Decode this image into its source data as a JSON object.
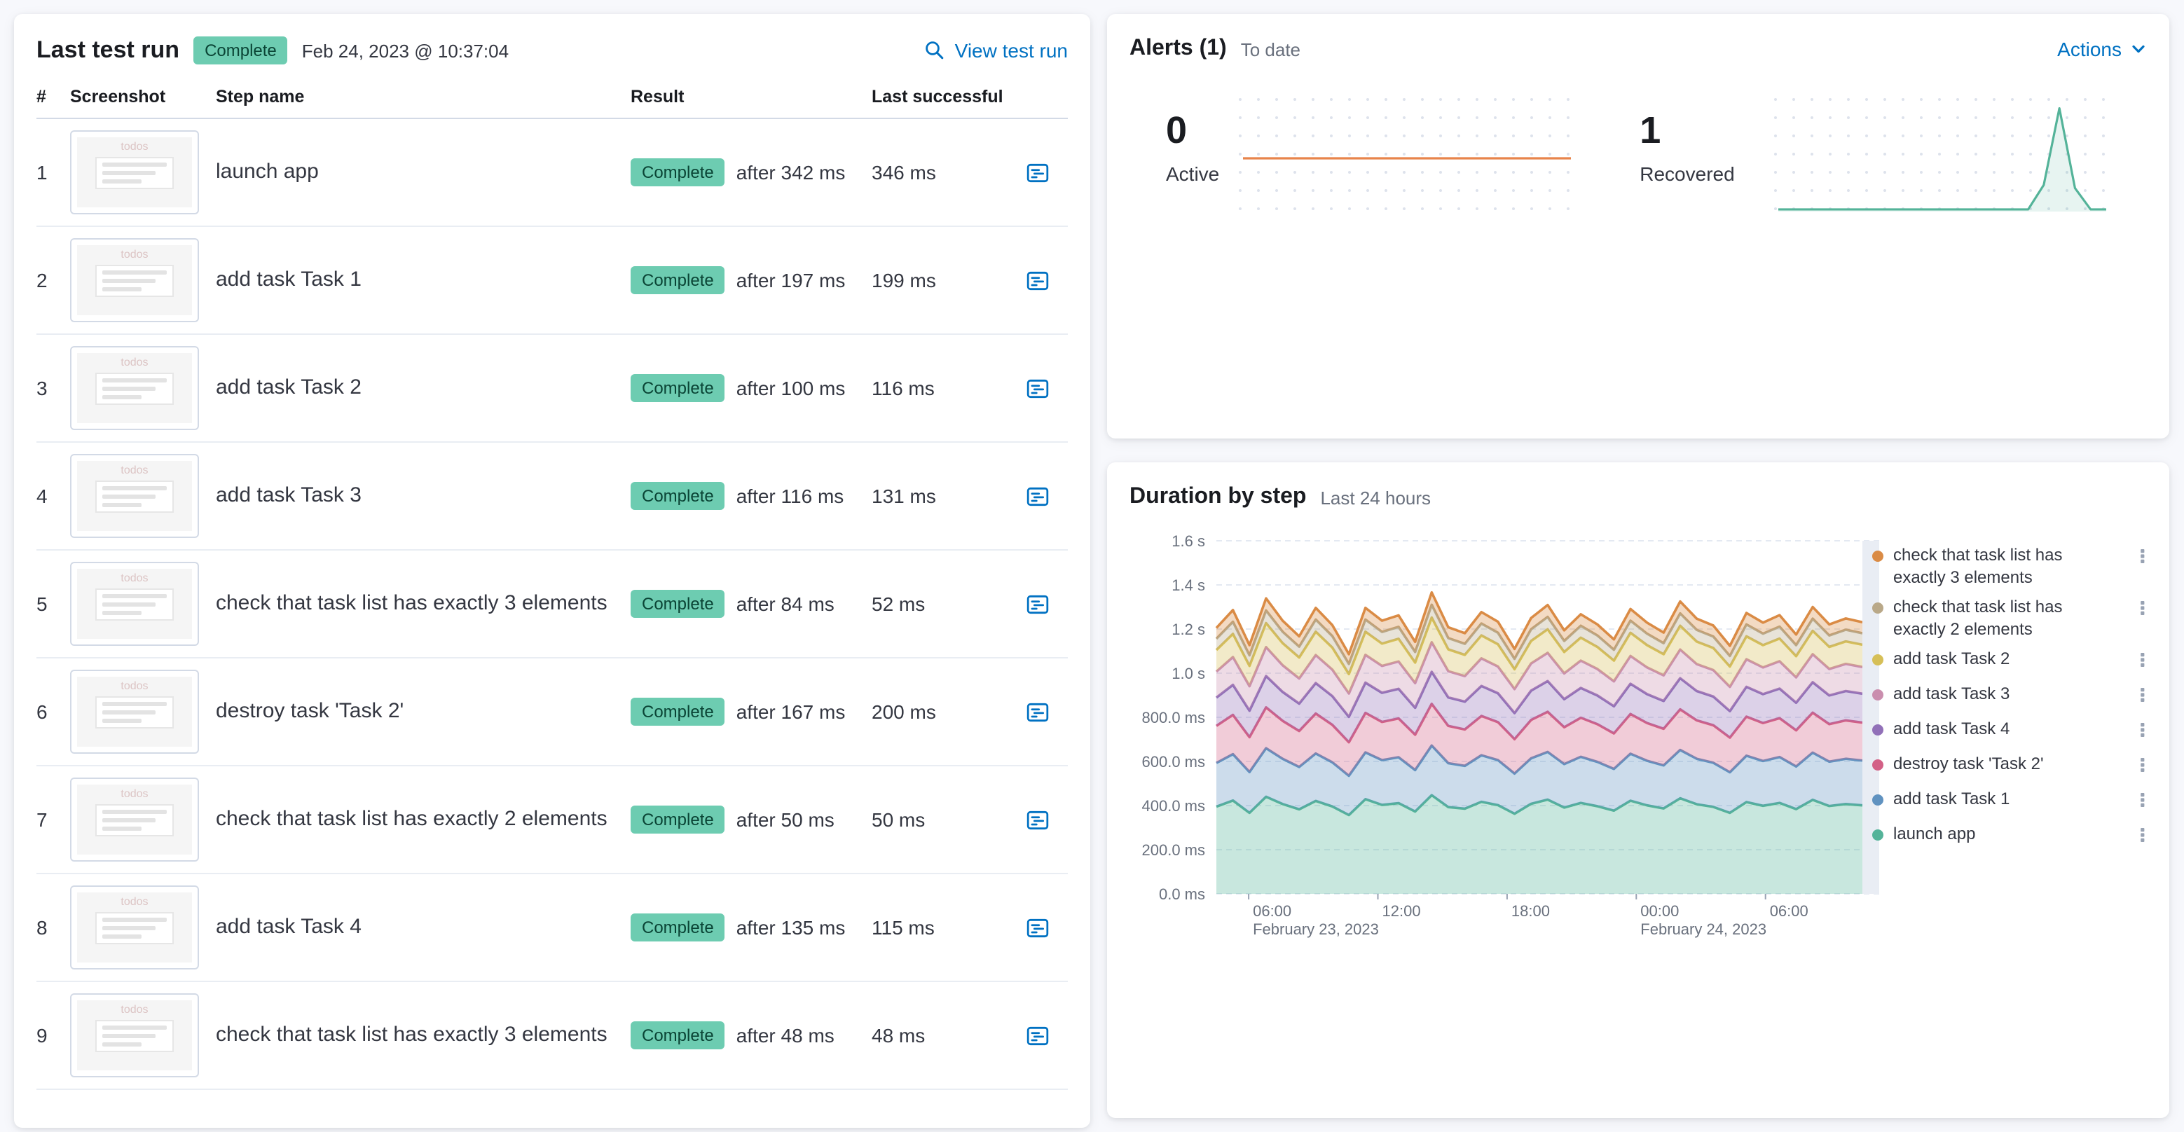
{
  "last_test_run": {
    "title": "Last test run",
    "status": "Complete",
    "timestamp": "Feb 24, 2023 @ 10:37:04",
    "view_test_run": "View test run",
    "columns": {
      "num": "#",
      "screenshot": "Screenshot",
      "step": "Step name",
      "result": "Result",
      "last_successful": "Last successful"
    },
    "thumb_text": "todos",
    "steps": [
      {
        "num": "1",
        "name": "launch app",
        "badge": "Complete",
        "after": "after 342 ms",
        "last": "346 ms"
      },
      {
        "num": "2",
        "name": "add task Task 1",
        "badge": "Complete",
        "after": "after 197 ms",
        "last": "199 ms"
      },
      {
        "num": "3",
        "name": "add task Task 2",
        "badge": "Complete",
        "after": "after 100 ms",
        "last": "116 ms"
      },
      {
        "num": "4",
        "name": "add task Task 3",
        "badge": "Complete",
        "after": "after 116 ms",
        "last": "131 ms"
      },
      {
        "num": "5",
        "name": "check that task list has exactly 3 elements",
        "badge": "Complete",
        "after": "after 84 ms",
        "last": "52 ms"
      },
      {
        "num": "6",
        "name": "destroy task 'Task 2'",
        "badge": "Complete",
        "after": "after 167 ms",
        "last": "200 ms"
      },
      {
        "num": "7",
        "name": "check that task list has exactly 2 elements",
        "badge": "Complete",
        "after": "after 50 ms",
        "last": "50 ms"
      },
      {
        "num": "8",
        "name": "add task Task 4",
        "badge": "Complete",
        "after": "after 135 ms",
        "last": "115 ms"
      },
      {
        "num": "9",
        "name": "check that task list has exactly 3 elements",
        "badge": "Complete",
        "after": "after 48 ms",
        "last": "48 ms"
      }
    ]
  },
  "alerts": {
    "title": "Alerts (1)",
    "subtitle": "To date",
    "actions": "Actions",
    "active": {
      "value": "0",
      "label": "Active",
      "color": "#E8844B",
      "spark": [
        0.5,
        0.5
      ]
    },
    "recovered": {
      "value": "1",
      "label": "Recovered",
      "color": "#54B399",
      "spark": [
        0.02,
        0.02,
        0.02,
        0.02,
        0.02,
        0.02,
        0.02,
        0.02,
        0.02,
        0.02,
        0.02,
        0.02,
        0.02,
        0.02,
        0.02,
        0.02,
        0.02,
        0.25,
        0.97,
        0.22,
        0.02,
        0.02
      ]
    }
  },
  "duration": {
    "title": "Duration by step",
    "subtitle": "Last 24 hours"
  },
  "chart_data": {
    "type": "area",
    "stacked": true,
    "title": "Duration by step",
    "subtitle": "Last 24 hours",
    "ylim": [
      0,
      1600
    ],
    "y_unit": "ms",
    "y_ticks": [
      {
        "v": 1600,
        "label": "1.6 s"
      },
      {
        "v": 1400,
        "label": "1.4 s"
      },
      {
        "v": 1200,
        "label": "1.2 s"
      },
      {
        "v": 1000,
        "label": "1.0 s"
      },
      {
        "v": 800,
        "label": "800.0 ms"
      },
      {
        "v": 600,
        "label": "600.0 ms"
      },
      {
        "v": 400,
        "label": "400.0 ms"
      },
      {
        "v": 200,
        "label": "200.0 ms"
      },
      {
        "v": 0,
        "label": "0.0 ms"
      }
    ],
    "x_ticks": [
      {
        "f": 0.05,
        "label": "06:00"
      },
      {
        "f": 0.25,
        "label": "12:00"
      },
      {
        "f": 0.45,
        "label": "18:00"
      },
      {
        "f": 0.65,
        "label": "00:00"
      },
      {
        "f": 0.85,
        "label": "06:00"
      }
    ],
    "x_dates": [
      {
        "f": 0.05,
        "label": "February 23, 2023"
      },
      {
        "f": 0.65,
        "label": "February 24, 2023"
      }
    ],
    "series": [
      {
        "name": "launch app",
        "color": "#54B399",
        "values": [
          395,
          423,
          367,
          440,
          407,
          383,
          421,
          396,
          357,
          429,
          403,
          411,
          373,
          447,
          393,
          386,
          417,
          402,
          363,
          408,
          427,
          391,
          412,
          397,
          377,
          422,
          401,
          387,
          433,
          406,
          394,
          367,
          416,
          399,
          412,
          384,
          426,
          398,
          407,
          401
        ]
      },
      {
        "name": "add task Task 1",
        "color": "#6092C0",
        "values": [
          198,
          210,
          185,
          220,
          205,
          192,
          215,
          200,
          178,
          212,
          203,
          208,
          188,
          225,
          199,
          194,
          211,
          204,
          182,
          206,
          216,
          197,
          209,
          201,
          189,
          213,
          202,
          195,
          219,
          206,
          200,
          184,
          210,
          203,
          208,
          193,
          214,
          201,
          205,
          203
        ]
      },
      {
        "name": "destroy task 'Task 2'",
        "color": "#D36086",
        "values": [
          168,
          178,
          158,
          185,
          172,
          163,
          181,
          170,
          152,
          179,
          173,
          176,
          160,
          189,
          169,
          165,
          178,
          172,
          156,
          174,
          182,
          167,
          177,
          171,
          161,
          180,
          171,
          166,
          184,
          174,
          170,
          157,
          177,
          172,
          176,
          164,
          181,
          170,
          174,
          172
        ]
      },
      {
        "name": "add task Task 4",
        "color": "#9170B8",
        "values": [
          128,
          136,
          120,
          142,
          131,
          124,
          138,
          130,
          115,
          137,
          132,
          134,
          122,
          145,
          129,
          126,
          136,
          131,
          118,
          133,
          139,
          127,
          135,
          130,
          123,
          137,
          131,
          126,
          141,
          133,
          130,
          120,
          135,
          131,
          134,
          125,
          138,
          130,
          133,
          131
        ]
      },
      {
        "name": "add task Task 3",
        "color": "#CA8EAE",
        "values": [
          118,
          126,
          111,
          131,
          121,
          114,
          127,
          120,
          106,
          126,
          122,
          124,
          112,
          134,
          119,
          116,
          125,
          121,
          109,
          123,
          128,
          117,
          124,
          120,
          113,
          126,
          121,
          116,
          130,
          122,
          120,
          110,
          125,
          121,
          124,
          115,
          127,
          120,
          123,
          121
        ]
      },
      {
        "name": "add task Task 2",
        "color": "#D6BF57",
        "values": [
          98,
          105,
          92,
          109,
          100,
          95,
          106,
          100,
          88,
          105,
          101,
          103,
          93,
          112,
          99,
          96,
          104,
          101,
          90,
          102,
          107,
          97,
          104,
          100,
          94,
          105,
          101,
          96,
          108,
          102,
          100,
          92,
          104,
          101,
          103,
          96,
          106,
          100,
          102,
          101
        ]
      },
      {
        "name": "check that task list has exactly 2 elements",
        "color": "#B9A888",
        "values": [
          51,
          55,
          48,
          57,
          52,
          49,
          55,
          52,
          46,
          55,
          53,
          54,
          48,
          58,
          51,
          50,
          54,
          52,
          47,
          53,
          56,
          50,
          54,
          52,
          49,
          55,
          52,
          50,
          56,
          53,
          52,
          48,
          54,
          52,
          54,
          50,
          55,
          52,
          53,
          52
        ]
      },
      {
        "name": "check that task list has exactly 3 elements",
        "color": "#DA8B45",
        "values": [
          49,
          53,
          46,
          55,
          50,
          47,
          53,
          50,
          44,
          53,
          51,
          52,
          46,
          56,
          49,
          48,
          52,
          50,
          45,
          51,
          54,
          48,
          52,
          50,
          47,
          53,
          50,
          48,
          54,
          51,
          50,
          46,
          52,
          50,
          52,
          48,
          53,
          50,
          51,
          50
        ]
      }
    ],
    "legend": [
      {
        "label": "check that task list has exactly 3 elements",
        "color": "#DA8B45"
      },
      {
        "label": "check that task list has exactly 2 elements",
        "color": "#B9A888"
      },
      {
        "label": "add task Task 2",
        "color": "#D6BF57"
      },
      {
        "label": "add task Task 3",
        "color": "#CA8EAE"
      },
      {
        "label": "add task Task 4",
        "color": "#9170B8"
      },
      {
        "label": "destroy task 'Task 2'",
        "color": "#D36086"
      },
      {
        "label": "add task Task 1",
        "color": "#6092C0"
      },
      {
        "label": "launch app",
        "color": "#54B399"
      }
    ]
  }
}
